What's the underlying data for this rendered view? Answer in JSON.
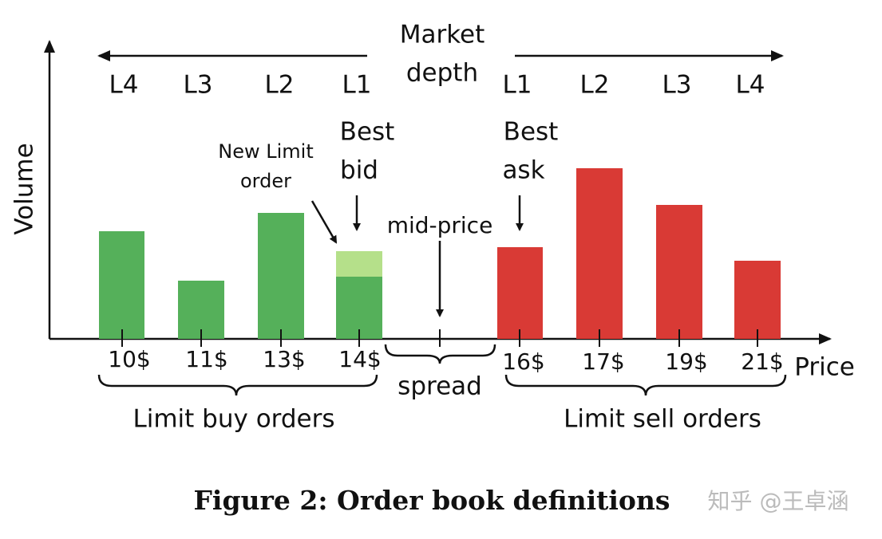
{
  "diagram": {
    "market_depth": [
      "Market",
      "depth"
    ],
    "buy_levels": [
      "L4",
      "L3",
      "L2",
      "L1"
    ],
    "sell_levels": [
      "L1",
      "L2",
      "L3",
      "L4"
    ],
    "best_bid": [
      "Best",
      "bid"
    ],
    "best_ask": [
      "Best",
      "ask"
    ],
    "new_limit_order": [
      "New Limit",
      "order"
    ],
    "mid_price": "mid-price",
    "y_axis_label": "Volume",
    "x_axis_label": "Price",
    "buy_prices": [
      "10$",
      "11$",
      "13$",
      "14$"
    ],
    "sell_prices": [
      "16$",
      "17$",
      "19$",
      "21$"
    ],
    "spread": "spread",
    "buy_group": "Limit buy orders",
    "sell_group": "Limit sell orders"
  },
  "caption": "Figure 2: Order book definitions",
  "watermark": "知乎 @王卓涵"
}
